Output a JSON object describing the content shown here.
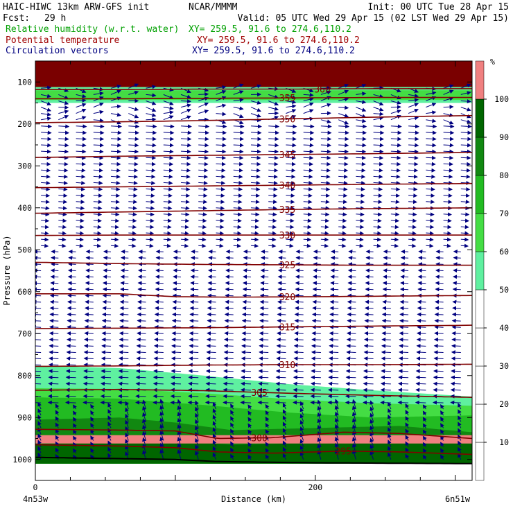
{
  "header": {
    "title": "HAIC-HIWC 13km ARW-GFS init",
    "institution": "NCAR/MMMM",
    "init": "Init: 00 UTC Tue 28 Apr 15",
    "fcst_label": "Fcst:",
    "fcst_value": "29 h",
    "valid": "Valid: 05 UTC Wed 29 Apr 15 (02 LST Wed 29 Apr 15)"
  },
  "fields": [
    {
      "name": "Relative humidity (w.r.t. water)",
      "xy": "XY= 259.5, 91.6 to 274.6,110.2",
      "color": "#00a000"
    },
    {
      "name": "Potential temperature",
      "xy": "XY= 259.5, 91.6 to 274.6,110.2",
      "color": "#a00000"
    },
    {
      "name": "Circulation vectors",
      "xy": "XY= 259.5, 91.6 to 274.6,110.2",
      "color": "#000080"
    }
  ],
  "colors": {
    "theta": "#800000",
    "vectors": "#000080",
    "top_band": "#7a0000",
    "terrain": "#000000"
  },
  "chart_data": {
    "type": "cross-section",
    "xlabel": "Distance (km)",
    "ylabel": "Pressure (hPa)",
    "xlim": [
      0,
      312
    ],
    "ylim_hpa": [
      1050,
      50
    ],
    "x_ticks": [
      0,
      200
    ],
    "y_ticks": [
      100,
      200,
      300,
      400,
      500,
      600,
      700,
      800,
      900,
      1000
    ],
    "x_end_labels": {
      "left": "4n53w",
      "right": "6n51w"
    },
    "theta_contours": [
      {
        "label": "360",
        "x": [
          0,
          60,
          120,
          180,
          240,
          312
        ],
        "p": [
          118,
          118,
          117,
          117,
          116,
          116
        ],
        "label_x": 205
      },
      {
        "label": "355",
        "x": [
          0,
          60,
          120,
          180,
          240,
          312
        ],
        "p": [
          140,
          140,
          139,
          138,
          137,
          137
        ],
        "label_x": 180
      },
      {
        "label": "350",
        "x": [
          0,
          60,
          120,
          180,
          240,
          312
        ],
        "p": [
          197,
          195,
          192,
          188,
          184,
          180
        ],
        "label_x": 180
      },
      {
        "label": "345",
        "x": [
          0,
          60,
          120,
          180,
          240,
          312
        ],
        "p": [
          280,
          277,
          275,
          273,
          271,
          268
        ],
        "label_x": 180
      },
      {
        "label": "340",
        "x": [
          0,
          60,
          120,
          180,
          240,
          312
        ],
        "p": [
          352,
          350,
          348,
          346,
          344,
          342
        ],
        "label_x": 180
      },
      {
        "label": "335",
        "x": [
          0,
          60,
          120,
          180,
          240,
          312
        ],
        "p": [
          413,
          410,
          407,
          404,
          402,
          400
        ],
        "label_x": 180
      },
      {
        "label": "330",
        "x": [
          0,
          60,
          120,
          180,
          240,
          312
        ],
        "p": [
          466,
          465,
          465,
          465,
          465,
          465
        ],
        "label_x": 180
      },
      {
        "label": "325",
        "x": [
          0,
          60,
          120,
          180,
          240,
          312
        ],
        "p": [
          530,
          533,
          535,
          536,
          537,
          537
        ],
        "label_x": 180
      },
      {
        "label": "320",
        "x": [
          0,
          60,
          100,
          140,
          200,
          312
        ],
        "p": [
          605,
          605,
          612,
          613,
          612,
          609
        ],
        "label_x": 180
      },
      {
        "label": "315",
        "x": [
          0,
          60,
          120,
          180,
          240,
          312
        ],
        "p": [
          688,
          687,
          686,
          684,
          682,
          680
        ],
        "label_x": 180
      },
      {
        "label": "310",
        "x": [
          0,
          60,
          120,
          180,
          240,
          312
        ],
        "p": [
          778,
          777,
          775,
          774,
          774,
          773
        ],
        "label_x": 180
      },
      {
        "label": "305",
        "x": [
          0,
          60,
          120,
          180,
          240,
          312
        ],
        "p": [
          835,
          833,
          836,
          842,
          847,
          852
        ],
        "label_x": 160
      },
      {
        "label": "300",
        "x": [
          0,
          60,
          100,
          130,
          170,
          220,
          260,
          312
        ],
        "p": [
          928,
          930,
          932,
          950,
          948,
          935,
          938,
          950
        ],
        "label_x": 160
      },
      {
        "label": "295",
        "x": [
          0,
          60,
          100,
          130,
          170,
          220,
          260,
          312
        ],
        "p": [
          965,
          968,
          972,
          982,
          985,
          980,
          982,
          988
        ],
        "label_x": 220
      }
    ],
    "rh_colorbar": {
      "unit": "%",
      "levels": [
        10,
        20,
        30,
        40,
        50,
        60,
        70,
        80,
        90,
        100
      ],
      "colors": [
        "#ffffff",
        "#ffffff",
        "#ffffff",
        "#ffffff",
        "#ffffff",
        "#5ff0a0",
        "#44dd44",
        "#22bb22",
        "#118811",
        "#006600",
        "#f08080"
      ]
    },
    "terrain_p_hpa": {
      "x": [
        0,
        100,
        130,
        200,
        312
      ],
      "p": [
        995,
        1000,
        1005,
        1008,
        1010
      ]
    }
  }
}
